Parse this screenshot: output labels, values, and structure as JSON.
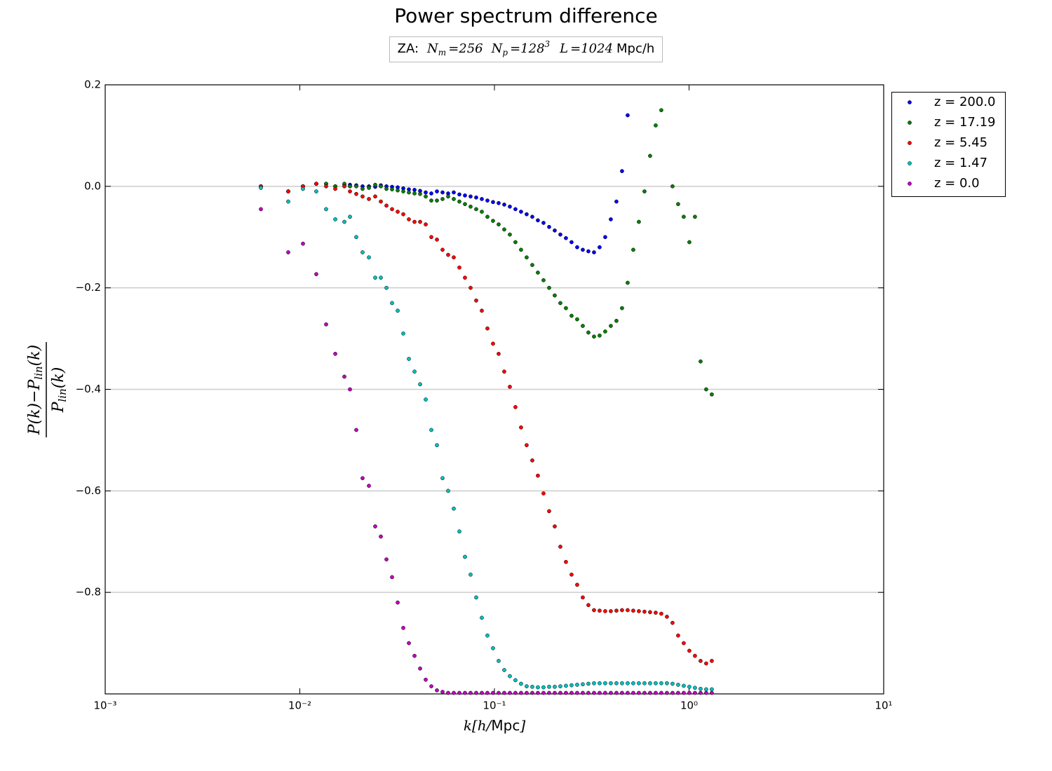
{
  "chart_data": {
    "type": "scatter",
    "title": "Power spectrum difference",
    "subtitle": [
      "ZA:",
      "N",
      "m",
      "=256",
      "N",
      "p",
      "=128",
      "3",
      "L",
      "=1024",
      "Mpc/h"
    ],
    "xlabel": [
      "k[h/",
      "Mpc",
      "]"
    ],
    "ylabel": {
      "numerator": [
        "P(k)−P",
        "lin",
        "(k)"
      ],
      "denominator": [
        "P",
        "lin",
        "(k)"
      ]
    },
    "xscale": "log",
    "xlim": [
      0.001,
      10
    ],
    "xticks": [
      {
        "value": 0.001,
        "label": "10⁻³"
      },
      {
        "value": 0.01,
        "label": "10⁻²"
      },
      {
        "value": 0.1,
        "label": "10⁻¹"
      },
      {
        "value": 1,
        "label": "10⁰"
      },
      {
        "value": 10,
        "label": "10¹"
      }
    ],
    "ylim": [
      -1.0,
      0.2
    ],
    "yticks": [
      0.2,
      {
        "value": 0,
        "label": "0.0"
      },
      {
        "value": -0.2,
        "label": "−0.2"
      },
      {
        "value": -0.4,
        "label": "−0.4"
      },
      {
        "value": -0.6,
        "label": "−0.6"
      },
      {
        "value": -0.8,
        "label": "−0.8"
      }
    ],
    "grid": true,
    "legend": "outside-right",
    "x": [
      0.00631,
      0.00872,
      0.01038,
      0.01215,
      0.01365,
      0.01521,
      0.01694,
      0.0181,
      0.0195,
      0.02101,
      0.02265,
      0.0244,
      0.02608,
      0.02787,
      0.02978,
      0.03183,
      0.03401,
      0.03634,
      0.03884,
      0.0415,
      0.04435,
      0.04739,
      0.05064,
      0.05412,
      0.05783,
      0.0618,
      0.06604,
      0.07057,
      0.07541,
      0.08059,
      0.08612,
      0.09203,
      0.09834,
      0.1051,
      0.1123,
      0.12,
      0.1282,
      0.137,
      0.1464,
      0.1565,
      0.1672,
      0.1787,
      0.191,
      0.2041,
      0.2181,
      0.233,
      0.249,
      0.2661,
      0.2844,
      0.3039,
      0.3248,
      0.347,
      0.3708,
      0.3963,
      0.4235,
      0.4525,
      0.4836,
      0.5168,
      0.5522,
      0.5901,
      0.6306,
      0.6739,
      0.7201,
      0.7696,
      0.8224,
      0.8788,
      0.9391,
      1.0035,
      1.0724,
      1.146,
      1.2246,
      1.3086
    ],
    "series": [
      {
        "name": "z = 200.0",
        "color": "#0000ff",
        "values": [
          0,
          -0.01,
          0,
          0.005,
          0.005,
          0,
          0.003,
          0.003,
          0.002,
          0,
          0,
          -0.001,
          0.002,
          0,
          -0.001,
          -0.002,
          -0.004,
          -0.006,
          -0.007,
          -0.009,
          -0.012,
          -0.014,
          -0.01,
          -0.012,
          -0.014,
          -0.012,
          -0.016,
          -0.018,
          -0.02,
          -0.022,
          -0.025,
          -0.028,
          -0.031,
          -0.033,
          -0.036,
          -0.04,
          -0.045,
          -0.05,
          -0.055,
          -0.06,
          -0.067,
          -0.072,
          -0.08,
          -0.087,
          -0.095,
          -0.102,
          -0.11,
          -0.12,
          -0.125,
          -0.128,
          -0.13,
          -0.12,
          -0.1,
          -0.065,
          -0.03,
          0.03,
          0.14,
          null,
          null,
          null,
          null,
          null,
          null,
          null,
          null,
          null,
          null,
          null,
          null,
          null,
          null,
          null
        ]
      },
      {
        "name": "z = 17.19",
        "color": "#008000",
        "values": [
          0,
          -0.01,
          0,
          0.005,
          0.005,
          0,
          0.005,
          0,
          0,
          -0.005,
          -0.003,
          0.003,
          0,
          -0.005,
          -0.006,
          -0.008,
          -0.01,
          -0.012,
          -0.014,
          -0.015,
          -0.02,
          -0.028,
          -0.028,
          -0.025,
          -0.02,
          -0.025,
          -0.03,
          -0.035,
          -0.04,
          -0.045,
          -0.05,
          -0.06,
          -0.068,
          -0.075,
          -0.085,
          -0.095,
          -0.11,
          -0.125,
          -0.14,
          -0.155,
          -0.17,
          -0.185,
          -0.2,
          -0.215,
          -0.23,
          -0.24,
          -0.255,
          -0.262,
          -0.275,
          -0.288,
          -0.296,
          -0.294,
          -0.286,
          -0.275,
          -0.265,
          -0.24,
          -0.19,
          -0.125,
          -0.07,
          -0.01,
          0.06,
          0.12,
          0.15,
          null,
          0.0,
          -0.035,
          -0.06,
          -0.11,
          -0.06,
          -0.345,
          -0.4,
          -0.41
        ]
      },
      {
        "name": "z = 5.45",
        "color": "#ff0000",
        "values": [
          0,
          -0.01,
          0,
          0.005,
          0,
          -0.005,
          0,
          -0.01,
          -0.015,
          -0.02,
          -0.025,
          -0.02,
          -0.03,
          -0.038,
          -0.045,
          -0.05,
          -0.055,
          -0.065,
          -0.07,
          -0.07,
          -0.075,
          -0.1,
          -0.105,
          -0.125,
          -0.135,
          -0.14,
          -0.16,
          -0.18,
          -0.2,
          -0.225,
          -0.245,
          -0.28,
          -0.31,
          -0.33,
          -0.365,
          -0.395,
          -0.435,
          -0.475,
          -0.51,
          -0.54,
          -0.57,
          -0.605,
          -0.64,
          -0.67,
          -0.71,
          -0.74,
          -0.765,
          -0.785,
          -0.81,
          -0.825,
          -0.835,
          -0.836,
          -0.837,
          -0.837,
          -0.836,
          -0.835,
          -0.835,
          -0.836,
          -0.837,
          -0.838,
          -0.839,
          -0.84,
          -0.842,
          -0.848,
          -0.86,
          -0.885,
          -0.9,
          -0.915,
          -0.925,
          -0.935,
          -0.94,
          -0.935
        ]
      },
      {
        "name": "z = 1.47",
        "color": "#00bfbf",
        "values": [
          -0.003,
          -0.03,
          -0.005,
          -0.01,
          -0.045,
          -0.065,
          -0.07,
          -0.06,
          -0.1,
          -0.13,
          -0.14,
          -0.18,
          -0.18,
          -0.2,
          -0.23,
          -0.245,
          -0.29,
          -0.34,
          -0.365,
          -0.39,
          -0.42,
          -0.48,
          -0.51,
          -0.575,
          -0.6,
          -0.635,
          -0.68,
          -0.73,
          -0.765,
          -0.81,
          -0.85,
          -0.885,
          -0.91,
          -0.935,
          -0.953,
          -0.965,
          -0.973,
          -0.98,
          -0.985,
          -0.986,
          -0.987,
          -0.987,
          -0.986,
          -0.986,
          -0.985,
          -0.984,
          -0.983,
          -0.982,
          -0.981,
          -0.98,
          -0.979,
          -0.979,
          -0.979,
          -0.979,
          -0.979,
          -0.979,
          -0.979,
          -0.979,
          -0.979,
          -0.979,
          -0.979,
          -0.979,
          -0.979,
          -0.979,
          -0.98,
          -0.982,
          -0.984,
          -0.986,
          -0.988,
          -0.99,
          -0.991,
          -0.991
        ]
      },
      {
        "name": "z = 0.0",
        "color": "#bf00bf",
        "values": [
          -0.045,
          -0.13,
          -0.113,
          -0.173,
          -0.272,
          -0.33,
          -0.375,
          -0.4,
          -0.48,
          -0.575,
          -0.59,
          -0.67,
          -0.69,
          -0.735,
          -0.77,
          -0.82,
          -0.87,
          -0.9,
          -0.925,
          -0.95,
          -0.972,
          -0.985,
          -0.993,
          -0.996,
          -0.998,
          -0.998,
          -0.998,
          -0.998,
          -0.998,
          -0.998,
          -0.998,
          -0.998,
          -0.998,
          -0.998,
          -0.998,
          -0.998,
          -0.998,
          -0.998,
          -0.998,
          -0.998,
          -0.998,
          -0.998,
          -0.998,
          -0.998,
          -0.998,
          -0.998,
          -0.998,
          -0.998,
          -0.998,
          -0.998,
          -0.998,
          -0.998,
          -0.998,
          -0.998,
          -0.998,
          -0.998,
          -0.998,
          -0.998,
          -0.998,
          -0.998,
          -0.998,
          -0.998,
          -0.998,
          -0.998,
          -0.998,
          -0.998,
          -0.998,
          -0.998,
          -0.998,
          -0.998,
          -0.998,
          -0.998
        ]
      }
    ]
  }
}
